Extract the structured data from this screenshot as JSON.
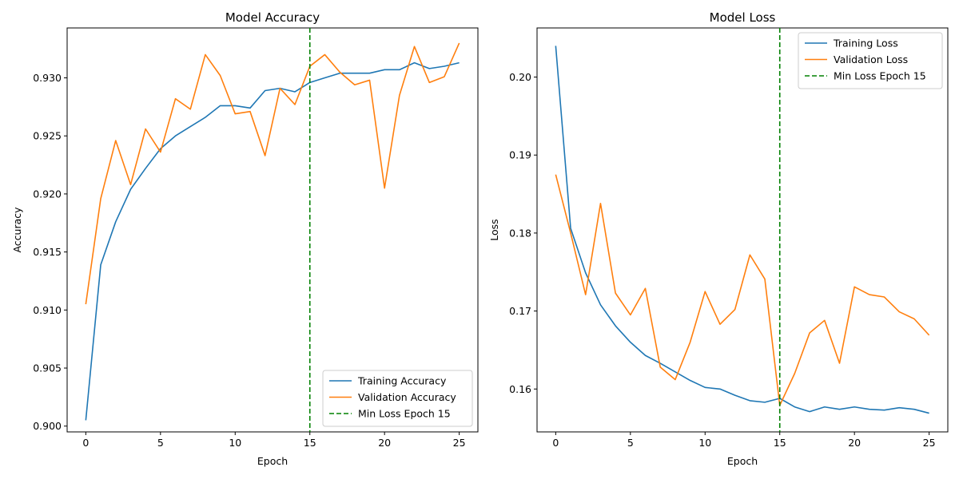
{
  "chart_data": [
    {
      "type": "line",
      "title": "Model Accuracy",
      "xlabel": "Epoch",
      "ylabel": "Accuracy",
      "xlim": [
        -1.25,
        26.25
      ],
      "ylim": [
        0.8995,
        0.9343
      ],
      "xticks": [
        0,
        5,
        10,
        15,
        20,
        25
      ],
      "yticks": [
        0.9,
        0.905,
        0.91,
        0.915,
        0.92,
        0.925,
        0.93
      ],
      "ytick_decimals": 3,
      "legend_position": "lower right",
      "x": [
        0,
        1,
        2,
        3,
        4,
        5,
        6,
        7,
        8,
        9,
        10,
        11,
        12,
        13,
        14,
        15,
        16,
        17,
        18,
        19,
        20,
        21,
        22,
        23,
        24,
        25
      ],
      "series": [
        {
          "name": "Training Accuracy",
          "color": "#1f77b4",
          "values": [
            0.9005,
            0.9139,
            0.9176,
            0.9204,
            0.9222,
            0.9239,
            0.925,
            0.9258,
            0.9266,
            0.9276,
            0.9276,
            0.9274,
            0.9289,
            0.9291,
            0.9288,
            0.9296,
            0.93,
            0.9304,
            0.9304,
            0.9304,
            0.9307,
            0.9307,
            0.9313,
            0.9308,
            0.931,
            0.9313
          ]
        },
        {
          "name": "Validation Accuracy",
          "color": "#ff7f0e",
          "values": [
            0.9105,
            0.9196,
            0.9246,
            0.9208,
            0.9256,
            0.9236,
            0.9282,
            0.9273,
            0.932,
            0.9302,
            0.9269,
            0.9271,
            0.9233,
            0.9291,
            0.9277,
            0.931,
            0.932,
            0.9305,
            0.9294,
            0.9298,
            0.9205,
            0.9285,
            0.9327,
            0.9296,
            0.9301,
            0.933
          ]
        }
      ],
      "vline": {
        "x": 15,
        "label": "Min Loss Epoch 15",
        "color": "#008000",
        "style": "dashed"
      }
    },
    {
      "type": "line",
      "title": "Model Loss",
      "xlabel": "Epoch",
      "ylabel": "Loss",
      "xlim": [
        -1.25,
        26.25
      ],
      "ylim": [
        0.1545,
        0.2063
      ],
      "xticks": [
        0,
        5,
        10,
        15,
        20,
        25
      ],
      "yticks": [
        0.16,
        0.17,
        0.18,
        0.19,
        0.2
      ],
      "ytick_decimals": 2,
      "legend_position": "upper right",
      "x": [
        0,
        1,
        2,
        3,
        4,
        5,
        6,
        7,
        8,
        9,
        10,
        11,
        12,
        13,
        14,
        15,
        16,
        17,
        18,
        19,
        20,
        21,
        22,
        23,
        24,
        25
      ],
      "series": [
        {
          "name": "Training Loss",
          "color": "#1f77b4",
          "values": [
            0.204,
            0.1806,
            0.1749,
            0.1708,
            0.1681,
            0.166,
            0.1643,
            0.1633,
            0.1622,
            0.1611,
            0.1602,
            0.16,
            0.1592,
            0.1585,
            0.1583,
            0.1588,
            0.1577,
            0.1571,
            0.1577,
            0.1574,
            0.1577,
            0.1574,
            0.1573,
            0.1576,
            0.1574,
            0.1569
          ]
        },
        {
          "name": "Validation Loss",
          "color": "#ff7f0e",
          "values": [
            0.1875,
            0.18,
            0.1721,
            0.1838,
            0.1723,
            0.1695,
            0.1729,
            0.1628,
            0.1612,
            0.166,
            0.1725,
            0.1683,
            0.1702,
            0.1772,
            0.1741,
            0.1579,
            0.162,
            0.1672,
            0.1688,
            0.1633,
            0.1731,
            0.1721,
            0.1718,
            0.1699,
            0.169,
            0.1669
          ]
        }
      ],
      "vline": {
        "x": 15,
        "label": "Min Loss Epoch 15",
        "color": "#008000",
        "style": "dashed"
      }
    }
  ]
}
